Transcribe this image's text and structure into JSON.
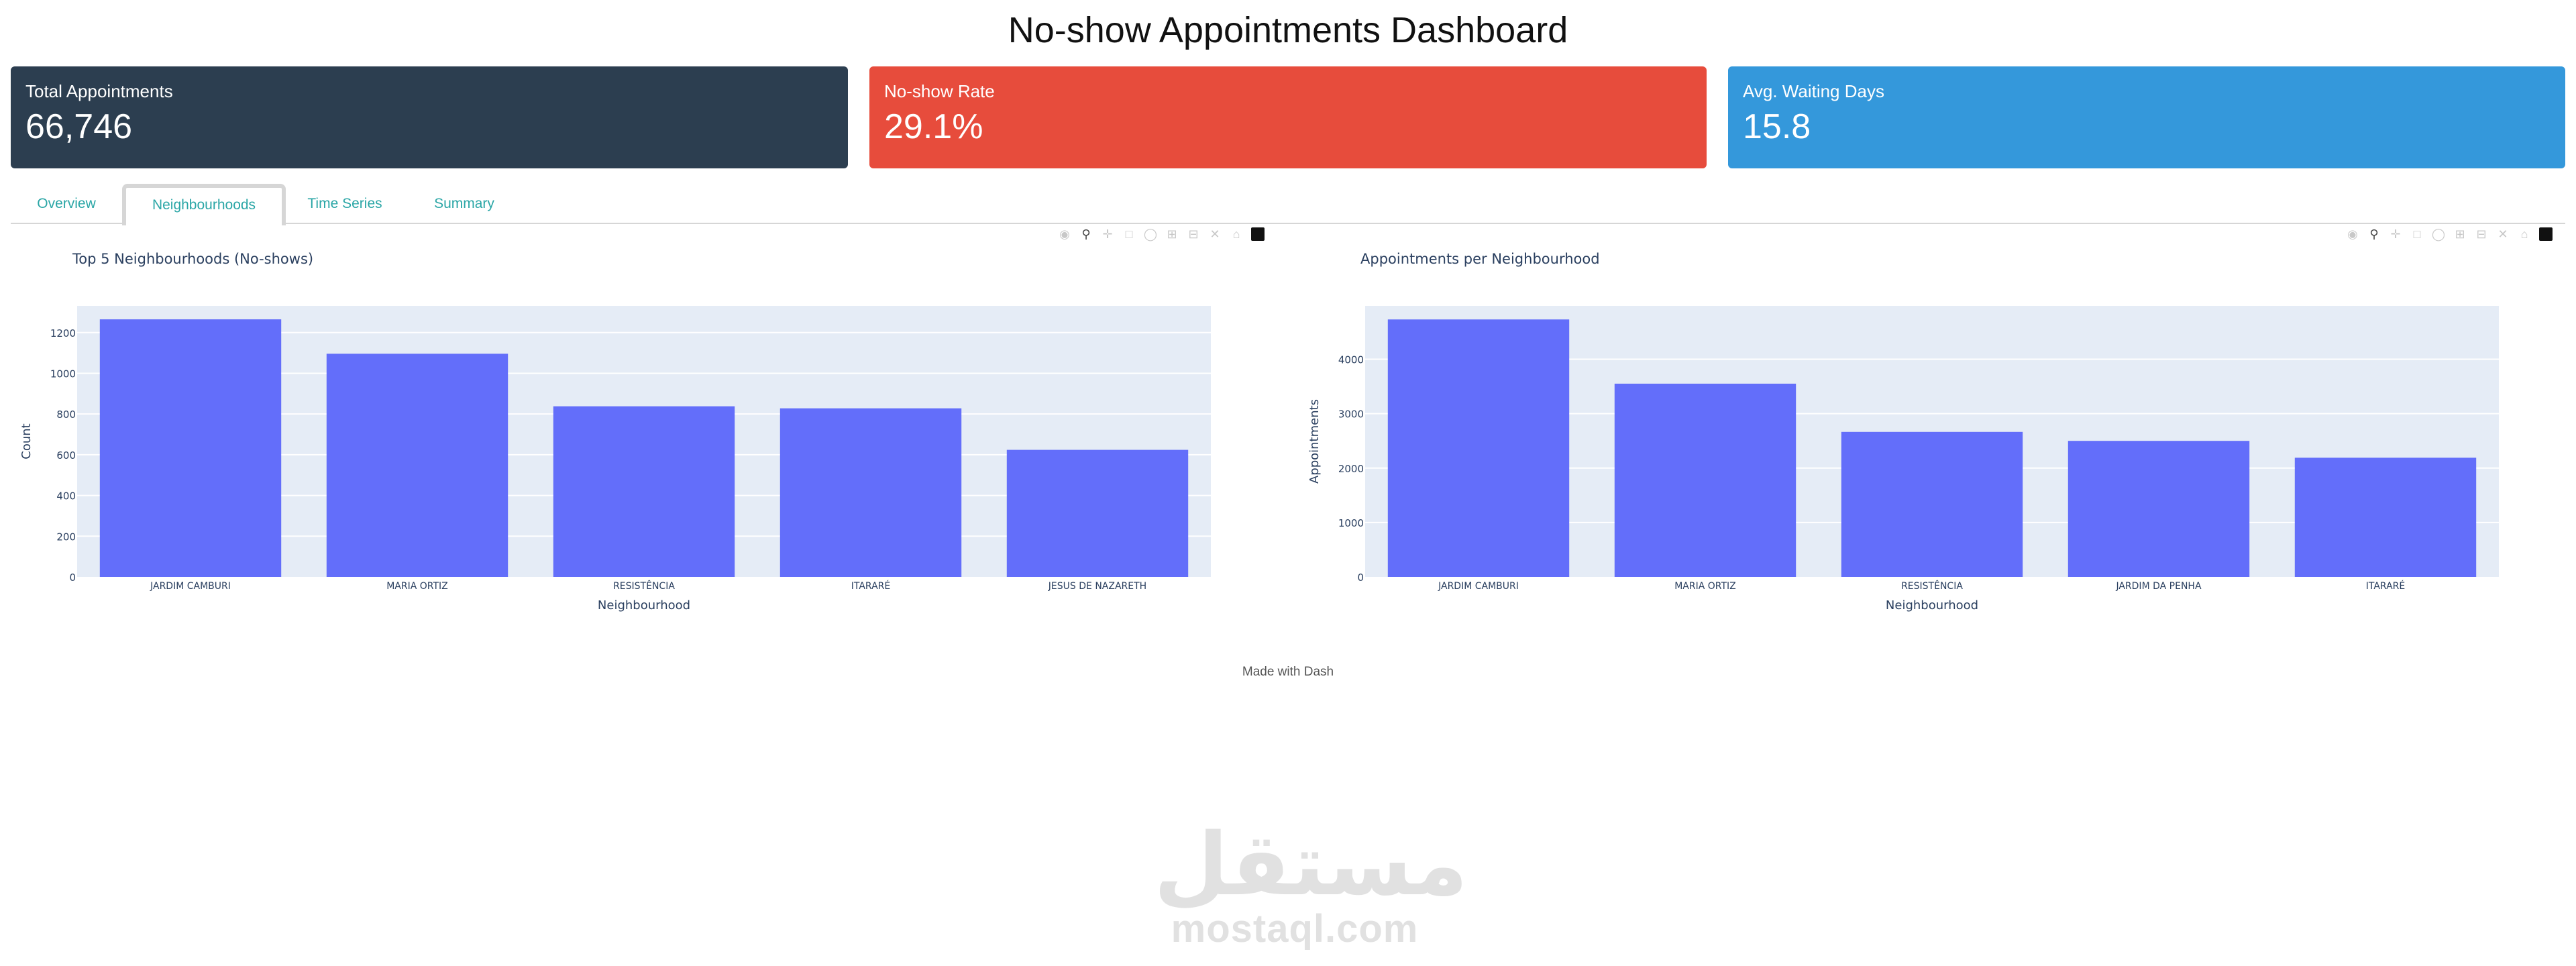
{
  "page": {
    "title": "No-show Appointments Dashboard"
  },
  "cards": [
    {
      "label": "Total Appointments",
      "value": "66,746",
      "color": "#2c3e50"
    },
    {
      "label": "No-show Rate",
      "value": "29.1%",
      "color": "#e74c3c"
    },
    {
      "label": "Avg. Waiting Days",
      "value": "15.8",
      "color": "#3498db"
    }
  ],
  "tabs": [
    {
      "label": "Overview",
      "selected": false
    },
    {
      "label": "Neighbourhoods",
      "selected": true
    },
    {
      "label": "Time Series",
      "selected": false
    },
    {
      "label": "Summary",
      "selected": false
    }
  ],
  "modebar_icons": [
    "camera-icon",
    "zoom-icon",
    "pan-icon",
    "box-select-icon",
    "lasso-icon",
    "zoom-in-icon",
    "zoom-out-icon",
    "autoscale-icon",
    "reset-axes-icon",
    "plotly-logo-icon"
  ],
  "chart_data": [
    {
      "type": "bar",
      "title": "Top 5 Neighbourhoods (No-shows)",
      "xlabel": "Neighbourhood",
      "ylabel": "Count",
      "categories": [
        "JARDIM CAMBURI",
        "MARIA ORTIZ",
        "RESISTÊNCIA",
        "ITARARÉ",
        "JESUS DE NAZARETH"
      ],
      "values": [
        1265,
        1096,
        838,
        828,
        624
      ],
      "ylim": [
        0,
        1331
      ],
      "yticks": [
        0,
        200,
        400,
        600,
        800,
        1000,
        1200
      ],
      "grid": true,
      "bar_color": "#636efa",
      "plot_bg": "#e5ecf6"
    },
    {
      "type": "bar",
      "title": "Appointments per Neighbourhood",
      "xlabel": "Neighbourhood",
      "ylabel": "Appointments",
      "categories": [
        "JARDIM CAMBURI",
        "MARIA ORTIZ",
        "RESISTÊNCIA",
        "JARDIM DA PENHA",
        "ITARARÉ"
      ],
      "values": [
        4731,
        3551,
        2665,
        2500,
        2190
      ],
      "ylim": [
        0,
        4980
      ],
      "yticks": [
        0,
        1000,
        2000,
        3000,
        4000
      ],
      "grid": true,
      "bar_color": "#636efa",
      "plot_bg": "#e5ecf6"
    }
  ],
  "footer": {
    "text": "Made with Dash"
  },
  "watermark": {
    "arabic": "مستقل",
    "latin": "mostaql.com"
  }
}
